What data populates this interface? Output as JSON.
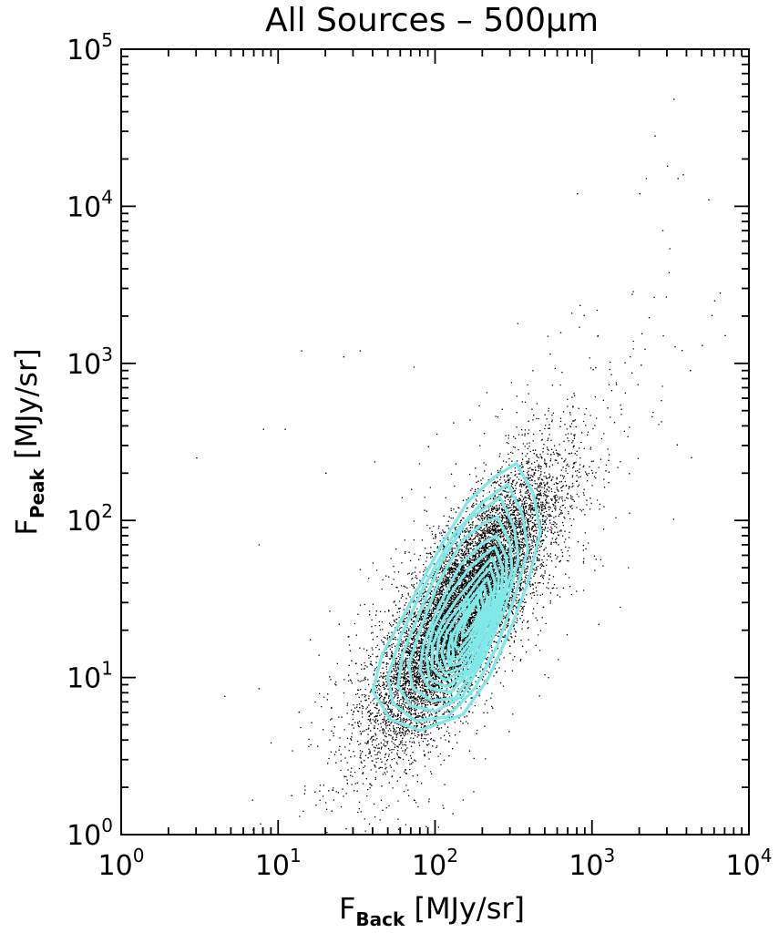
{
  "chart_data": {
    "type": "scatter",
    "title": "All Sources – 500μm",
    "xlabel": {
      "base": "F",
      "sub": "Back",
      "unit": "[MJy/sr]"
    },
    "ylabel": {
      "base": "F",
      "sub": "Peak",
      "unit": "[MJy/sr]"
    },
    "xscale": "log",
    "yscale": "log",
    "xlim": [
      1,
      10000
    ],
    "ylim": [
      1,
      100000
    ],
    "x_ticks": [
      {
        "value": 1,
        "label": "10",
        "exp": "0"
      },
      {
        "value": 10,
        "label": "10",
        "exp": "1"
      },
      {
        "value": 100,
        "label": "10",
        "exp": "2"
      },
      {
        "value": 1000,
        "label": "10",
        "exp": "3"
      },
      {
        "value": 10000,
        "label": "10",
        "exp": "4"
      }
    ],
    "y_ticks": [
      {
        "value": 1,
        "label": "10",
        "exp": "0"
      },
      {
        "value": 10,
        "label": "10",
        "exp": "1"
      },
      {
        "value": 100,
        "label": "10",
        "exp": "2"
      },
      {
        "value": 1000,
        "label": "10",
        "exp": "3"
      },
      {
        "value": 10000,
        "label": "10",
        "exp": "4"
      },
      {
        "value": 100000,
        "label": "10",
        "exp": "5"
      }
    ],
    "scatter_color": "#000000",
    "contour_color": "#7fe8e8",
    "distribution": {
      "log_x_mean": 2.18,
      "log_y_mean": 1.45,
      "log_x_sd": 0.28,
      "log_y_sd": 0.42,
      "correlation": 0.8,
      "n_points": 26000
    },
    "outlier_points": [
      [
        3,
        250
      ],
      [
        7.5,
        8.5
      ],
      [
        7.5,
        70
      ],
      [
        8,
        380
      ],
      [
        11,
        380
      ],
      [
        14,
        1200
      ],
      [
        20,
        200
      ],
      [
        26,
        1100
      ],
      [
        33,
        1200
      ],
      [
        3300,
        48000
      ],
      [
        2500,
        28000
      ],
      [
        3000,
        18000
      ],
      [
        3500,
        15000
      ],
      [
        2000,
        12000
      ],
      [
        5500,
        11000
      ],
      [
        6000,
        2500
      ],
      [
        7000,
        1500
      ],
      [
        5000,
        1300
      ],
      [
        4200,
        900
      ],
      [
        1000,
        200
      ],
      [
        1500,
        28
      ],
      [
        6500,
        2800
      ],
      [
        800,
        12000
      ],
      [
        2200,
        15000
      ],
      [
        2800,
        7000
      ]
    ],
    "contours": [
      {
        "points": [
          [
            330,
            230
          ],
          [
            420,
            150
          ],
          [
            470,
            85
          ],
          [
            390,
            40
          ],
          [
            300,
            20
          ],
          [
            220,
            10
          ],
          [
            150,
            5.8
          ],
          [
            80,
            4.6
          ],
          [
            52,
            5.4
          ],
          [
            40,
            8.2
          ],
          [
            46,
            14
          ],
          [
            70,
            30
          ],
          [
            110,
            70
          ],
          [
            160,
            130
          ],
          [
            240,
            190
          ]
        ]
      },
      {
        "points": [
          [
            290,
            170
          ],
          [
            360,
            110
          ],
          [
            390,
            65
          ],
          [
            320,
            32
          ],
          [
            250,
            16
          ],
          [
            180,
            8.6
          ],
          [
            120,
            5.6
          ],
          [
            75,
            5.3
          ],
          [
            54,
            6.8
          ],
          [
            50,
            10
          ],
          [
            60,
            18
          ],
          [
            85,
            38
          ],
          [
            130,
            80
          ],
          [
            200,
            130
          ]
        ]
      },
      {
        "points": [
          [
            260,
            140
          ],
          [
            320,
            90
          ],
          [
            340,
            56
          ],
          [
            280,
            28
          ],
          [
            210,
            14
          ],
          [
            150,
            7.6
          ],
          [
            100,
            6.1
          ],
          [
            70,
            6.6
          ],
          [
            58,
            8.8
          ],
          [
            62,
            14
          ],
          [
            80,
            26
          ],
          [
            110,
            55
          ],
          [
            160,
            100
          ],
          [
            220,
            125
          ]
        ]
      },
      {
        "points": [
          [
            250,
            105
          ],
          [
            300,
            72
          ],
          [
            310,
            48
          ],
          [
            255,
            25
          ],
          [
            190,
            12.5
          ],
          [
            135,
            7.4
          ],
          [
            95,
            7.1
          ],
          [
            72,
            8.6
          ],
          [
            68,
            12
          ],
          [
            80,
            20
          ],
          [
            105,
            40
          ],
          [
            150,
            75
          ],
          [
            200,
            95
          ]
        ]
      },
      {
        "points": [
          [
            245,
            80
          ],
          [
            285,
            58
          ],
          [
            285,
            40
          ],
          [
            235,
            22
          ],
          [
            175,
            11.5
          ],
          [
            125,
            8.0
          ],
          [
            92,
            8.6
          ],
          [
            80,
            11
          ],
          [
            84,
            16
          ],
          [
            105,
            28
          ],
          [
            145,
            52
          ],
          [
            195,
            70
          ]
        ]
      },
      {
        "points": [
          [
            240,
            68
          ],
          [
            270,
            50
          ],
          [
            265,
            36
          ],
          [
            220,
            20
          ],
          [
            165,
            11
          ],
          [
            118,
            8.7
          ],
          [
            92,
            9.8
          ],
          [
            88,
            14
          ],
          [
            98,
            21
          ],
          [
            125,
            34
          ],
          [
            165,
            50
          ],
          [
            205,
            60
          ]
        ]
      },
      {
        "points": [
          [
            232,
            58
          ],
          [
            255,
            44
          ],
          [
            248,
            32
          ],
          [
            205,
            19
          ],
          [
            155,
            11
          ],
          [
            115,
            9.6
          ],
          [
            96,
            11.5
          ],
          [
            96,
            16
          ],
          [
            112,
            23
          ],
          [
            140,
            32
          ],
          [
            180,
            43
          ],
          [
            210,
            52
          ]
        ]
      },
      {
        "points": [
          [
            225,
            50
          ],
          [
            242,
            40
          ],
          [
            232,
            29
          ],
          [
            192,
            18
          ],
          [
            148,
            11.5
          ],
          [
            115,
            10.6
          ],
          [
            102,
            13
          ],
          [
            106,
            18
          ],
          [
            125,
            24
          ],
          [
            155,
            31
          ],
          [
            195,
            43
          ]
        ]
      },
      {
        "points": [
          [
            215,
            43
          ],
          [
            228,
            35
          ],
          [
            218,
            27
          ],
          [
            182,
            17.5
          ],
          [
            142,
            12.2
          ],
          [
            117,
            11.8
          ],
          [
            110,
            14.5
          ],
          [
            118,
            19
          ],
          [
            140,
            25
          ],
          [
            175,
            33
          ],
          [
            200,
            39
          ]
        ]
      },
      {
        "points": [
          [
            205,
            38
          ],
          [
            215,
            31
          ],
          [
            205,
            25
          ],
          [
            172,
            17.5
          ],
          [
            138,
            13
          ],
          [
            122,
            13.6
          ],
          [
            122,
            16
          ],
          [
            134,
            20
          ],
          [
            158,
            26
          ],
          [
            188,
            33
          ]
        ]
      },
      {
        "points": [
          [
            195,
            34
          ],
          [
            203,
            28
          ],
          [
            192,
            23.5
          ],
          [
            165,
            18
          ],
          [
            142,
            15
          ],
          [
            133,
            16
          ],
          [
            140,
            20
          ],
          [
            160,
            25
          ],
          [
            182,
            30
          ]
        ]
      },
      {
        "points": [
          [
            186,
            31
          ],
          [
            191,
            26
          ],
          [
            180,
            22.5
          ],
          [
            162,
            19.5
          ],
          [
            150,
            18
          ],
          [
            150,
            20
          ],
          [
            160,
            24
          ],
          [
            175,
            28
          ]
        ]
      }
    ],
    "contour_inner_marks": [
      {
        "points": [
          [
            120,
            14
          ],
          [
            127,
            19
          ],
          [
            131,
            14
          ],
          [
            124,
            12
          ]
        ]
      },
      {
        "points": [
          [
            150,
            28
          ],
          [
            160,
            33
          ],
          [
            166,
            28
          ],
          [
            156,
            25
          ]
        ]
      }
    ]
  }
}
